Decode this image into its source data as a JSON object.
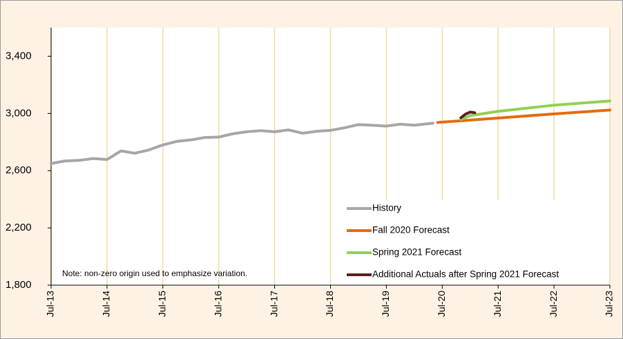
{
  "chart_data": {
    "type": "line",
    "note": "Note: non-zero origin used to emphasize variation.",
    "xlim": [
      "2013-07",
      "2023-07"
    ],
    "xticks": [
      {
        "value": "2013-07",
        "label": "Jul-13"
      },
      {
        "value": "2014-07",
        "label": "Jul-14"
      },
      {
        "value": "2015-07",
        "label": "Jul-15"
      },
      {
        "value": "2016-07",
        "label": "Jul-16"
      },
      {
        "value": "2017-07",
        "label": "Jul-17"
      },
      {
        "value": "2018-07",
        "label": "Jul-18"
      },
      {
        "value": "2019-07",
        "label": "Jul-19"
      },
      {
        "value": "2020-07",
        "label": "Jul-20"
      },
      {
        "value": "2021-07",
        "label": "Jul-21"
      },
      {
        "value": "2022-07",
        "label": "Jul-22"
      },
      {
        "value": "2023-07",
        "label": "Jul-23"
      }
    ],
    "ylim": [
      1800,
      3600
    ],
    "yticks": [
      {
        "value": 1800,
        "label": "1,800"
      },
      {
        "value": 2200,
        "label": "2,200"
      },
      {
        "value": 2600,
        "label": "2,600"
      },
      {
        "value": 3000,
        "label": "3,000"
      },
      {
        "value": 3400,
        "label": "3,400"
      }
    ],
    "grid": "x",
    "grid_color": "#f5d9a8",
    "legend": "lower right",
    "series": [
      {
        "name": "History",
        "color": "#a6a6a6",
        "x": [
          "2013-07",
          "2013-10",
          "2014-01",
          "2014-04",
          "2014-07",
          "2014-10",
          "2015-01",
          "2015-04",
          "2015-07",
          "2015-10",
          "2016-01",
          "2016-04",
          "2016-07",
          "2016-10",
          "2017-01",
          "2017-04",
          "2017-07",
          "2017-10",
          "2018-01",
          "2018-04",
          "2018-07",
          "2018-10",
          "2019-01",
          "2019-04",
          "2019-07",
          "2019-10",
          "2020-01",
          "2020-05"
        ],
        "values": [
          2650,
          2668,
          2672,
          2685,
          2678,
          2738,
          2722,
          2745,
          2780,
          2805,
          2815,
          2832,
          2835,
          2858,
          2872,
          2880,
          2872,
          2885,
          2862,
          2875,
          2882,
          2900,
          2922,
          2918,
          2912,
          2925,
          2918,
          2932
        ]
      },
      {
        "name": "Fall 2020 Forecast",
        "color": "#e36c0a",
        "x": [
          "2020-06",
          "2021-07",
          "2022-07",
          "2023-07"
        ],
        "values": [
          2937,
          2968,
          2997,
          3024
        ]
      },
      {
        "name": "Spring 2021 Forecast",
        "color": "#92d050",
        "x": [
          "2020-11",
          "2021-01",
          "2021-07",
          "2022-07",
          "2023-07"
        ],
        "values": [
          2958,
          2985,
          3015,
          3058,
          3087
        ]
      },
      {
        "name": "Additional Actuals after Spring 2021 Forecast",
        "color": "#5c1f1f",
        "x": [
          "2020-11",
          "2020-12",
          "2021-01",
          "2021-02"
        ],
        "values": [
          2970,
          2995,
          3010,
          3005
        ]
      }
    ]
  }
}
